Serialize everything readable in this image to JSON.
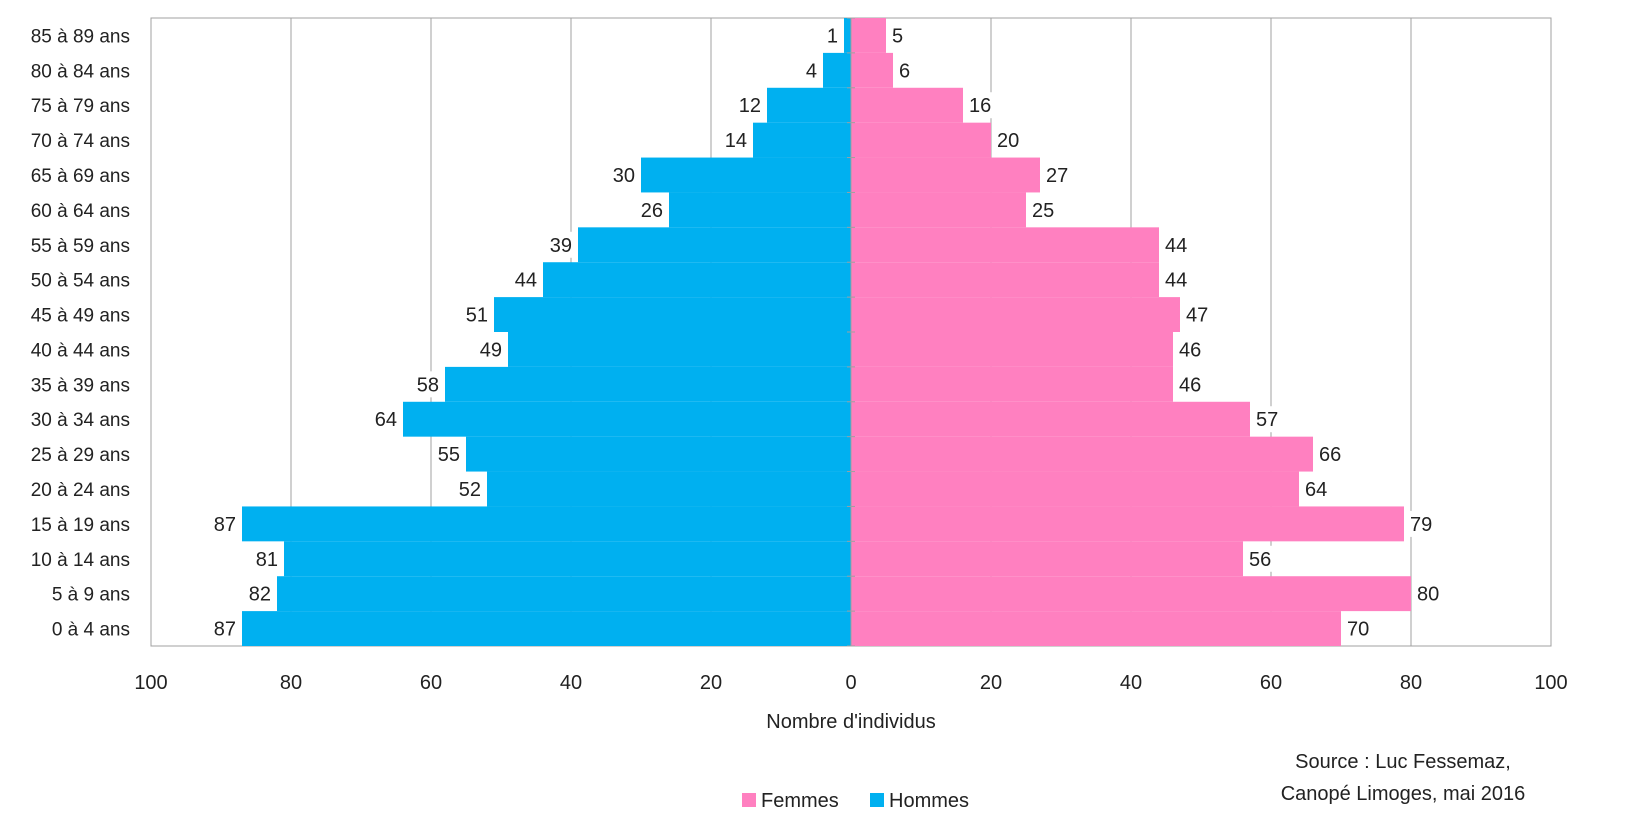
{
  "chart_data": {
    "type": "bar",
    "orientation": "horizontal",
    "subtype": "population-pyramid",
    "categories": [
      "0 à 4 ans",
      "5 à 9 ans",
      "10 à 14 ans",
      "15 à 19 ans",
      "20 à 24 ans",
      "25 à 29 ans",
      "30 à 34 ans",
      "35 à 39 ans",
      "40 à 44 ans",
      "45 à 49 ans",
      "50 à 54 ans",
      "55 à 59 ans",
      "60 à 64 ans",
      "65 à 69 ans",
      "70 à 74 ans",
      "75 à 79 ans",
      "80 à 84 ans",
      "85 à 89 ans"
    ],
    "series": [
      {
        "name": "Hommes",
        "color": "#00B0F0",
        "side": "left",
        "values": [
          87,
          82,
          81,
          87,
          52,
          55,
          64,
          58,
          49,
          51,
          44,
          39,
          26,
          30,
          14,
          12,
          4,
          1
        ]
      },
      {
        "name": "Femmes",
        "color": "#FF80C0",
        "side": "right",
        "values": [
          70,
          80,
          56,
          79,
          64,
          66,
          57,
          46,
          46,
          47,
          44,
          44,
          25,
          27,
          20,
          16,
          6,
          5
        ]
      }
    ],
    "xlabel": "Nombre d'individus",
    "xlim": [
      -100,
      100
    ],
    "x_ticks": [
      -100,
      -80,
      -60,
      -40,
      -20,
      0,
      20,
      40,
      60,
      80,
      100
    ],
    "x_tick_labels": [
      "100",
      "80",
      "60",
      "40",
      "20",
      "0",
      "20",
      "40",
      "60",
      "80",
      "100"
    ],
    "grid": "vertical",
    "legend_position": "bottom",
    "legend_order": [
      "Femmes",
      "Hommes"
    ],
    "annotation": [
      "Source : Luc Fessemaz,",
      "Canopé Limoges, mai 2016"
    ]
  }
}
